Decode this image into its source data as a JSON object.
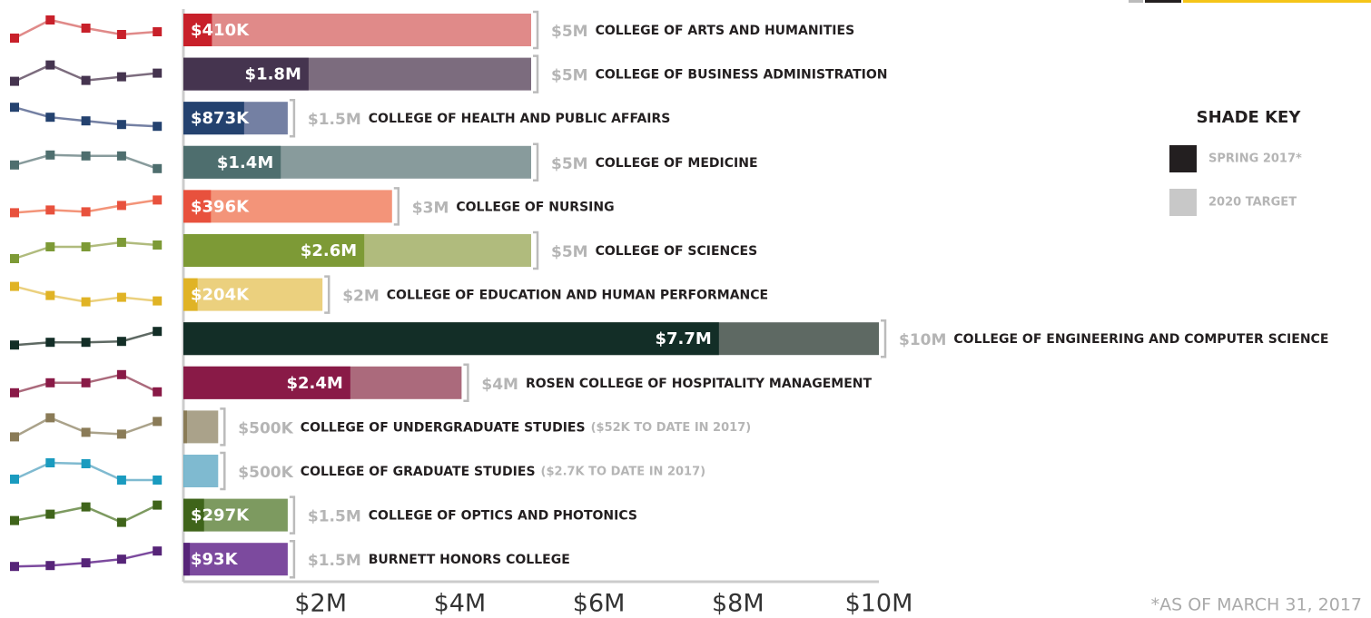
{
  "chart_data": {
    "type": "bar",
    "orientation": "horizontal",
    "categories": [
      "COLLEGE OF ARTS AND HUMANITIES",
      "COLLEGE OF BUSINESS ADMINISTRATION",
      "COLLEGE OF HEALTH AND PUBLIC AFFAIRS",
      "COLLEGE OF MEDICINE",
      "COLLEGE OF NURSING",
      "COLLEGE OF SCIENCES",
      "COLLEGE OF EDUCATION AND HUMAN PERFORMANCE",
      "COLLEGE OF ENGINEERING AND COMPUTER SCIENCE",
      "ROSEN COLLEGE OF HOSPITALITY MANAGEMENT",
      "COLLEGE OF UNDERGRADUATE STUDIES",
      "COLLEGE OF GRADUATE STUDIES",
      "COLLEGE OF OPTICS AND PHOTONICS",
      "BURNETT HONORS COLLEGE"
    ],
    "series": [
      {
        "name": "SPRING 2017*",
        "color": "#231f20",
        "values": [
          0.41,
          1.8,
          0.873,
          1.4,
          0.396,
          2.6,
          0.204,
          7.7,
          2.4,
          0.052,
          0.0027,
          0.297,
          0.093
        ],
        "value_labels": [
          "$410K",
          "$1.8M",
          "$873K",
          "$1.4M",
          "$396K",
          "$2.6M",
          "$204K",
          "$7.7M",
          "$2.4M",
          null,
          null,
          "$297K",
          "$93K"
        ],
        "colors": [
          "#c8202a",
          "#45344f",
          "#24426f",
          "#4e6e6e",
          "#e8513d",
          "#7d9a36",
          "#e0b325",
          "#132e27",
          "#891a47",
          "#8a7b57",
          "#1a9bbf",
          "#3f641a",
          "#562478"
        ]
      },
      {
        "name": "2020 TARGET",
        "color": "#c8c8c8",
        "values": [
          5,
          5,
          1.5,
          5,
          3,
          5,
          2,
          10,
          4,
          0.5,
          0.5,
          1.5,
          1.5
        ],
        "value_labels": [
          "$5M",
          "$5M",
          "$1.5M",
          "$5M",
          "$3M",
          "$5M",
          "$2M",
          "$10M",
          "$4M",
          "$500K",
          "$500K",
          "$1.5M",
          "$1.5M"
        ],
        "colors": [
          "#e08a89",
          "#7c6c7e",
          "#7480a3",
          "#889b9c",
          "#f39479",
          "#b0bb7d",
          "#ebd07e",
          "#5e6963",
          "#ab6a7c",
          "#aaa28a",
          "#7fbad0",
          "#7d9a60",
          "#7c4a9e"
        ]
      }
    ],
    "notes": [
      null,
      null,
      null,
      null,
      null,
      null,
      null,
      null,
      null,
      "($52K TO DATE IN 2017)",
      "($2.7K TO DATE IN 2017)",
      null,
      null
    ],
    "xlim": [
      0,
      10
    ],
    "xticks": [
      {
        "value": 2,
        "label": "$2M"
      },
      {
        "value": 4,
        "label": "$4M"
      },
      {
        "value": 6,
        "label": "$6M"
      },
      {
        "value": 8,
        "label": "$8M"
      },
      {
        "value": 10,
        "label": "$10M"
      }
    ],
    "trend": {
      "ylim": [
        0,
        24
      ],
      "values": [
        [
          3,
          23,
          14,
          7,
          10
        ],
        [
          4,
          22,
          5,
          9,
          13
        ],
        [
          24,
          13,
          9,
          5,
          3
        ],
        [
          9,
          20,
          19,
          19,
          5
        ],
        [
          5,
          8,
          6,
          13,
          19
        ],
        [
          3,
          16,
          16,
          21,
          18
        ],
        [
          21,
          11,
          4,
          9,
          5
        ],
        [
          5,
          8,
          8,
          9,
          20
        ],
        [
          1,
          12,
          12,
          21,
          2
        ],
        [
          1,
          22,
          6,
          4,
          18
        ],
        [
          3,
          21,
          20,
          2,
          2
        ],
        [
          6,
          13,
          21,
          4,
          23
        ],
        [
          4,
          5,
          8,
          12,
          21
        ]
      ]
    },
    "legend_title": "SHADE KEY",
    "footnote": "*AS OF MARCH 31, 2017"
  }
}
